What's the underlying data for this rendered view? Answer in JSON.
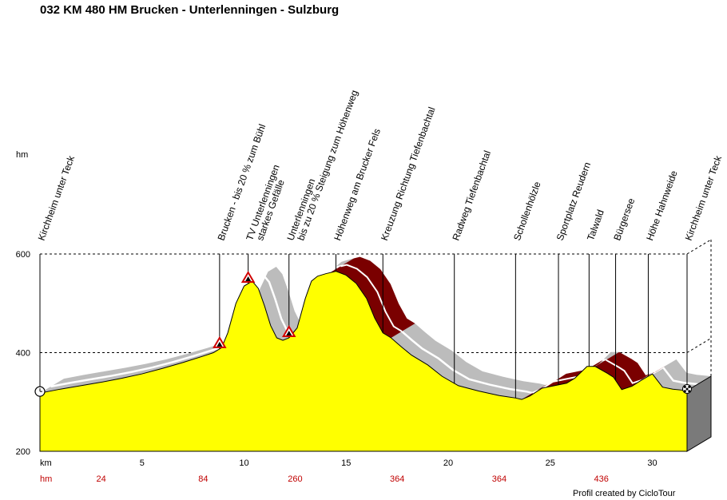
{
  "title": "032 KM 480 HM Brucken - Unterlenningen - Sulzburg",
  "credit": "Profil created by CicloTour",
  "chart_data": {
    "type": "area",
    "ylabel": "hm",
    "xlabel": "km",
    "hm_row_label": "hm",
    "xlim": [
      0,
      31.7
    ],
    "ylim": [
      200,
      600
    ],
    "y_ticks": [
      200,
      400,
      600
    ],
    "x_ticks": [
      5,
      10,
      15,
      20,
      25,
      30
    ],
    "cumulative_hm": [
      {
        "km": 3,
        "hm": "24"
      },
      {
        "km": 8,
        "hm": "84"
      },
      {
        "km": 12.5,
        "hm": "260"
      },
      {
        "km": 17.5,
        "hm": "364"
      },
      {
        "km": 22.5,
        "hm": "364"
      },
      {
        "km": 27.5,
        "hm": "436"
      }
    ],
    "colors": {
      "fill": "#ffff00",
      "shadow": "#bcbcbc",
      "steep": "#7a0000",
      "hm_text": "#c00000"
    },
    "profile": [
      [
        0,
        318
      ],
      [
        1,
        326
      ],
      [
        2,
        333
      ],
      [
        3,
        340
      ],
      [
        4,
        348
      ],
      [
        5,
        357
      ],
      [
        6,
        368
      ],
      [
        7,
        380
      ],
      [
        8,
        393
      ],
      [
        8.5,
        400
      ],
      [
        8.9,
        410
      ],
      [
        9.2,
        440
      ],
      [
        9.6,
        500
      ],
      [
        10,
        535
      ],
      [
        10.4,
        545
      ],
      [
        10.7,
        530
      ],
      [
        11,
        495
      ],
      [
        11.3,
        455
      ],
      [
        11.6,
        430
      ],
      [
        11.9,
        425
      ],
      [
        12.2,
        430
      ],
      [
        12.6,
        450
      ],
      [
        13,
        510
      ],
      [
        13.3,
        545
      ],
      [
        13.6,
        555
      ],
      [
        14,
        560
      ],
      [
        14.5,
        565
      ],
      [
        15,
        557
      ],
      [
        15.5,
        540
      ],
      [
        16,
        510
      ],
      [
        16.4,
        470
      ],
      [
        16.8,
        440
      ],
      [
        17.2,
        430
      ],
      [
        17.7,
        412
      ],
      [
        18.2,
        395
      ],
      [
        19,
        375
      ],
      [
        19.7,
        352
      ],
      [
        20.5,
        333
      ],
      [
        21.5,
        322
      ],
      [
        22.5,
        313
      ],
      [
        23.3,
        308
      ],
      [
        23.6,
        305
      ],
      [
        24,
        312
      ],
      [
        24.6,
        328
      ],
      [
        25.2,
        333
      ],
      [
        25.8,
        338
      ],
      [
        26.2,
        348
      ],
      [
        26.8,
        372
      ],
      [
        27.2,
        372
      ],
      [
        27.8,
        358
      ],
      [
        28.1,
        350
      ],
      [
        28.5,
        325
      ],
      [
        29,
        332
      ],
      [
        29.5,
        345
      ],
      [
        30,
        357
      ],
      [
        30.5,
        330
      ],
      [
        31,
        326
      ],
      [
        31.7,
        323
      ]
    ],
    "steep_segments": [
      [
        14.2,
        17.2
      ],
      [
        23.6,
        26.4
      ],
      [
        27.2,
        29.5
      ]
    ],
    "waypoints": [
      {
        "km": 0,
        "label": "Kirchheim unter Teck",
        "icon": "start"
      },
      {
        "km": 8.8,
        "label": "Brucken - bis 20 % zum Bühl",
        "icon": "warning"
      },
      {
        "km": 10.2,
        "label": "TV Unterlenningen",
        "label2": "starkes Gefälle",
        "icon": "warning"
      },
      {
        "km": 12.2,
        "label": "Unterlenningen",
        "label2": "bis zu 20 % Steigung zum Höhenweg",
        "icon": "warning"
      },
      {
        "km": 14.5,
        "label": "Höhenweg am Brucker Fels",
        "icon": ""
      },
      {
        "km": 16.8,
        "label": "Kreuzung Richtung Tiefenbachtal",
        "icon": ""
      },
      {
        "km": 20.3,
        "label": "Radweg Tiefenbachtal",
        "icon": ""
      },
      {
        "km": 23.3,
        "label": "Schollenhölzle",
        "icon": ""
      },
      {
        "km": 25.4,
        "label": "Sportplatz Reudern",
        "icon": ""
      },
      {
        "km": 26.9,
        "label": "Talwald",
        "icon": ""
      },
      {
        "km": 28.2,
        "label": "Bürgersee",
        "icon": ""
      },
      {
        "km": 29.8,
        "label": "Höhe Hahnweide",
        "icon": ""
      },
      {
        "km": 31.7,
        "label": "Kirchheim unter Teck",
        "icon": "finish"
      }
    ]
  }
}
